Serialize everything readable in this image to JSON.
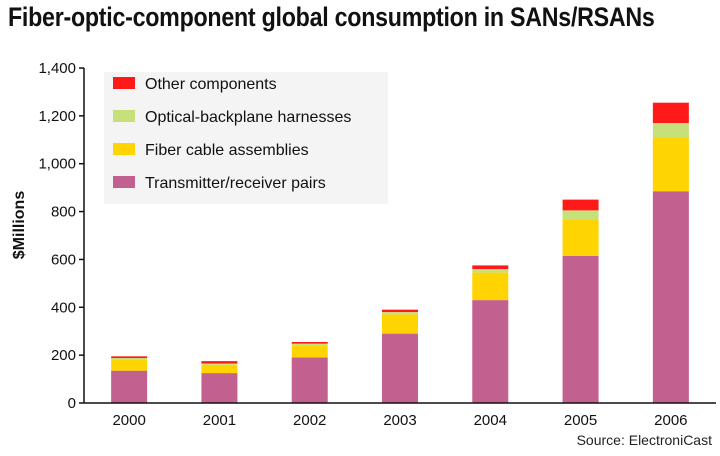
{
  "chart_data": {
    "type": "bar",
    "stacked": true,
    "title": "Fiber-optic-component global consumption in SANs/RSANs",
    "ylabel": "$Millions",
    "xlabel": "",
    "source": "Source: ElectroniCast",
    "categories": [
      "2000",
      "2001",
      "2002",
      "2003",
      "2004",
      "2005",
      "2006"
    ],
    "ylim": [
      0,
      1400
    ],
    "yticks": [
      "0",
      "200",
      "400",
      "600",
      "800",
      "1,000",
      "1,200",
      "1,400"
    ],
    "ytick_values": [
      0,
      200,
      400,
      600,
      800,
      1000,
      1200,
      1400
    ],
    "grid": false,
    "legend_position": "top-left",
    "series": [
      {
        "name": "Transmitter/receiver pairs",
        "color": "#c2608f",
        "values": [
          135,
          125,
          190,
          290,
          430,
          615,
          885
        ]
      },
      {
        "name": "Fiber cable assemblies",
        "color": "#ffd400",
        "values": [
          45,
          35,
          50,
          80,
          115,
          150,
          225
        ]
      },
      {
        "name": "Optical-backplane harnesses",
        "color": "#c6e07a",
        "values": [
          8,
          5,
          8,
          10,
          15,
          40,
          60
        ]
      },
      {
        "name": "Other components",
        "color": "#ff1a1a",
        "values": [
          7,
          10,
          7,
          10,
          15,
          45,
          85
        ]
      }
    ],
    "legend_order": [
      "Other components",
      "Optical-backplane harnesses",
      "Fiber cable assemblies",
      "Transmitter/receiver pairs"
    ]
  }
}
